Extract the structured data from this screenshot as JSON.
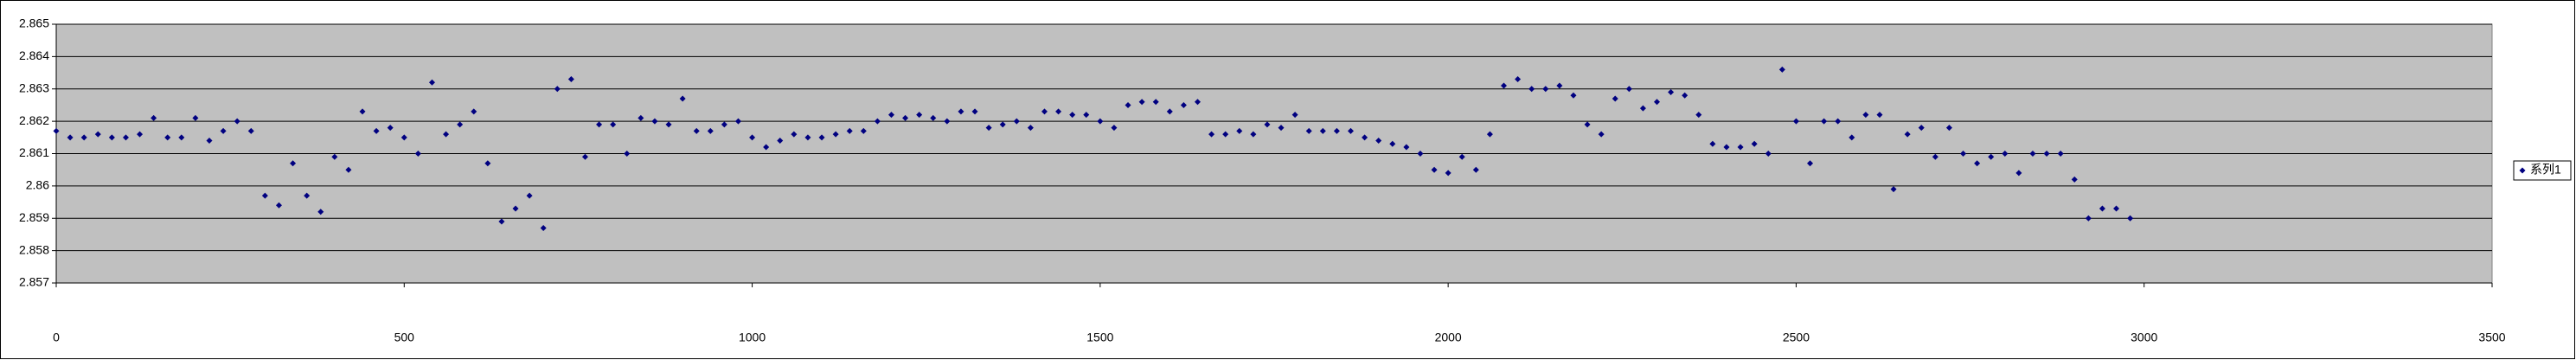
{
  "chart_data": {
    "type": "scatter",
    "x": [
      0,
      20,
      40,
      60,
      80,
      100,
      120,
      140,
      160,
      180,
      200,
      220,
      240,
      260,
      280,
      300,
      320,
      340,
      360,
      380,
      400,
      420,
      440,
      460,
      480,
      500,
      520,
      540,
      560,
      580,
      600,
      620,
      640,
      660,
      680,
      700,
      720,
      740,
      760,
      780,
      800,
      820,
      840,
      860,
      880,
      900,
      920,
      940,
      960,
      980,
      1000,
      1020,
      1040,
      1060,
      1080,
      1100,
      1120,
      1140,
      1160,
      1180,
      1200,
      1220,
      1240,
      1260,
      1280,
      1300,
      1320,
      1340,
      1360,
      1380,
      1400,
      1420,
      1440,
      1460,
      1480,
      1500,
      1520,
      1540,
      1560,
      1580,
      1600,
      1620,
      1640,
      1660,
      1680,
      1700,
      1720,
      1740,
      1760,
      1780,
      1800,
      1820,
      1840,
      1860,
      1880,
      1900,
      1920,
      1940,
      1960,
      1980,
      2000,
      2020,
      2040,
      2060,
      2080,
      2100,
      2120,
      2140,
      2160,
      2180,
      2200,
      2220,
      2240,
      2260,
      2280,
      2300,
      2320,
      2340,
      2360,
      2380,
      2400,
      2420,
      2440,
      2460,
      2480,
      2500,
      2520,
      2540,
      2560,
      2580,
      2600,
      2620,
      2640,
      2660,
      2680,
      2700,
      2720,
      2740,
      2760,
      2780,
      2800,
      2820,
      2840,
      2860,
      2880,
      2900,
      2920,
      2940,
      2960,
      2980
    ],
    "series": [
      {
        "name": "系列1",
        "color": "#000080",
        "values": [
          2.8617,
          2.8615,
          2.8615,
          2.8616,
          2.8615,
          2.8615,
          2.8616,
          2.8621,
          2.8615,
          2.8615,
          2.8621,
          2.8614,
          2.8617,
          2.862,
          2.8617,
          2.8597,
          2.8594,
          2.8607,
          2.8597,
          2.8592,
          2.8609,
          2.8605,
          2.8623,
          2.8617,
          2.8618,
          2.8615,
          2.861,
          2.8632,
          2.8616,
          2.8619,
          2.8623,
          2.8607,
          2.8589,
          2.8593,
          2.8597,
          2.8587,
          2.863,
          2.8633,
          2.8609,
          2.8619,
          2.8619,
          2.861,
          2.8621,
          2.862,
          2.8619,
          2.8627,
          2.8617,
          2.8617,
          2.8619,
          2.862,
          2.8615,
          2.8612,
          2.8614,
          2.8616,
          2.8615,
          2.8615,
          2.8616,
          2.8617,
          2.8617,
          2.862,
          2.8622,
          2.8621,
          2.8622,
          2.8621,
          2.862,
          2.8623,
          2.8623,
          2.8618,
          2.8619,
          2.862,
          2.8618,
          2.8623,
          2.8623,
          2.8622,
          2.8622,
          2.862,
          2.8618,
          2.8625,
          2.8626,
          2.8626,
          2.8623,
          2.8625,
          2.8626,
          2.8616,
          2.8616,
          2.8617,
          2.8616,
          2.8619,
          2.8618,
          2.8622,
          2.8617,
          2.8617,
          2.8617,
          2.8617,
          2.8615,
          2.8614,
          2.8613,
          2.8612,
          2.861,
          2.8605,
          2.8604,
          2.8609,
          2.8605,
          2.8616,
          2.8631,
          2.8633,
          2.863,
          2.863,
          2.8631,
          2.8628,
          2.8619,
          2.8616,
          2.8627,
          2.863,
          2.8624,
          2.8626,
          2.8629,
          2.8628,
          2.8622,
          2.8613,
          2.8612,
          2.8612,
          2.8613,
          2.861,
          2.8636,
          2.862,
          2.8607,
          2.862,
          2.862,
          2.8615,
          2.8622,
          2.8622,
          2.8599,
          2.8616,
          2.8618,
          2.8609,
          2.8618,
          2.861,
          2.8607,
          2.8609,
          2.861,
          2.8604,
          2.861,
          2.861,
          2.861,
          2.8602,
          2.859,
          2.8593,
          2.8593,
          2.859
        ]
      }
    ],
    "xlim": [
      0,
      3500
    ],
    "xticks": [
      0,
      500,
      1000,
      1500,
      2000,
      2500,
      3000,
      3500
    ],
    "ylim": [
      2.857,
      2.865
    ],
    "yticks": [
      2.857,
      2.858,
      2.859,
      2.86,
      2.861,
      2.862,
      2.863,
      2.864,
      2.865
    ],
    "grid": true,
    "legend": "right"
  }
}
